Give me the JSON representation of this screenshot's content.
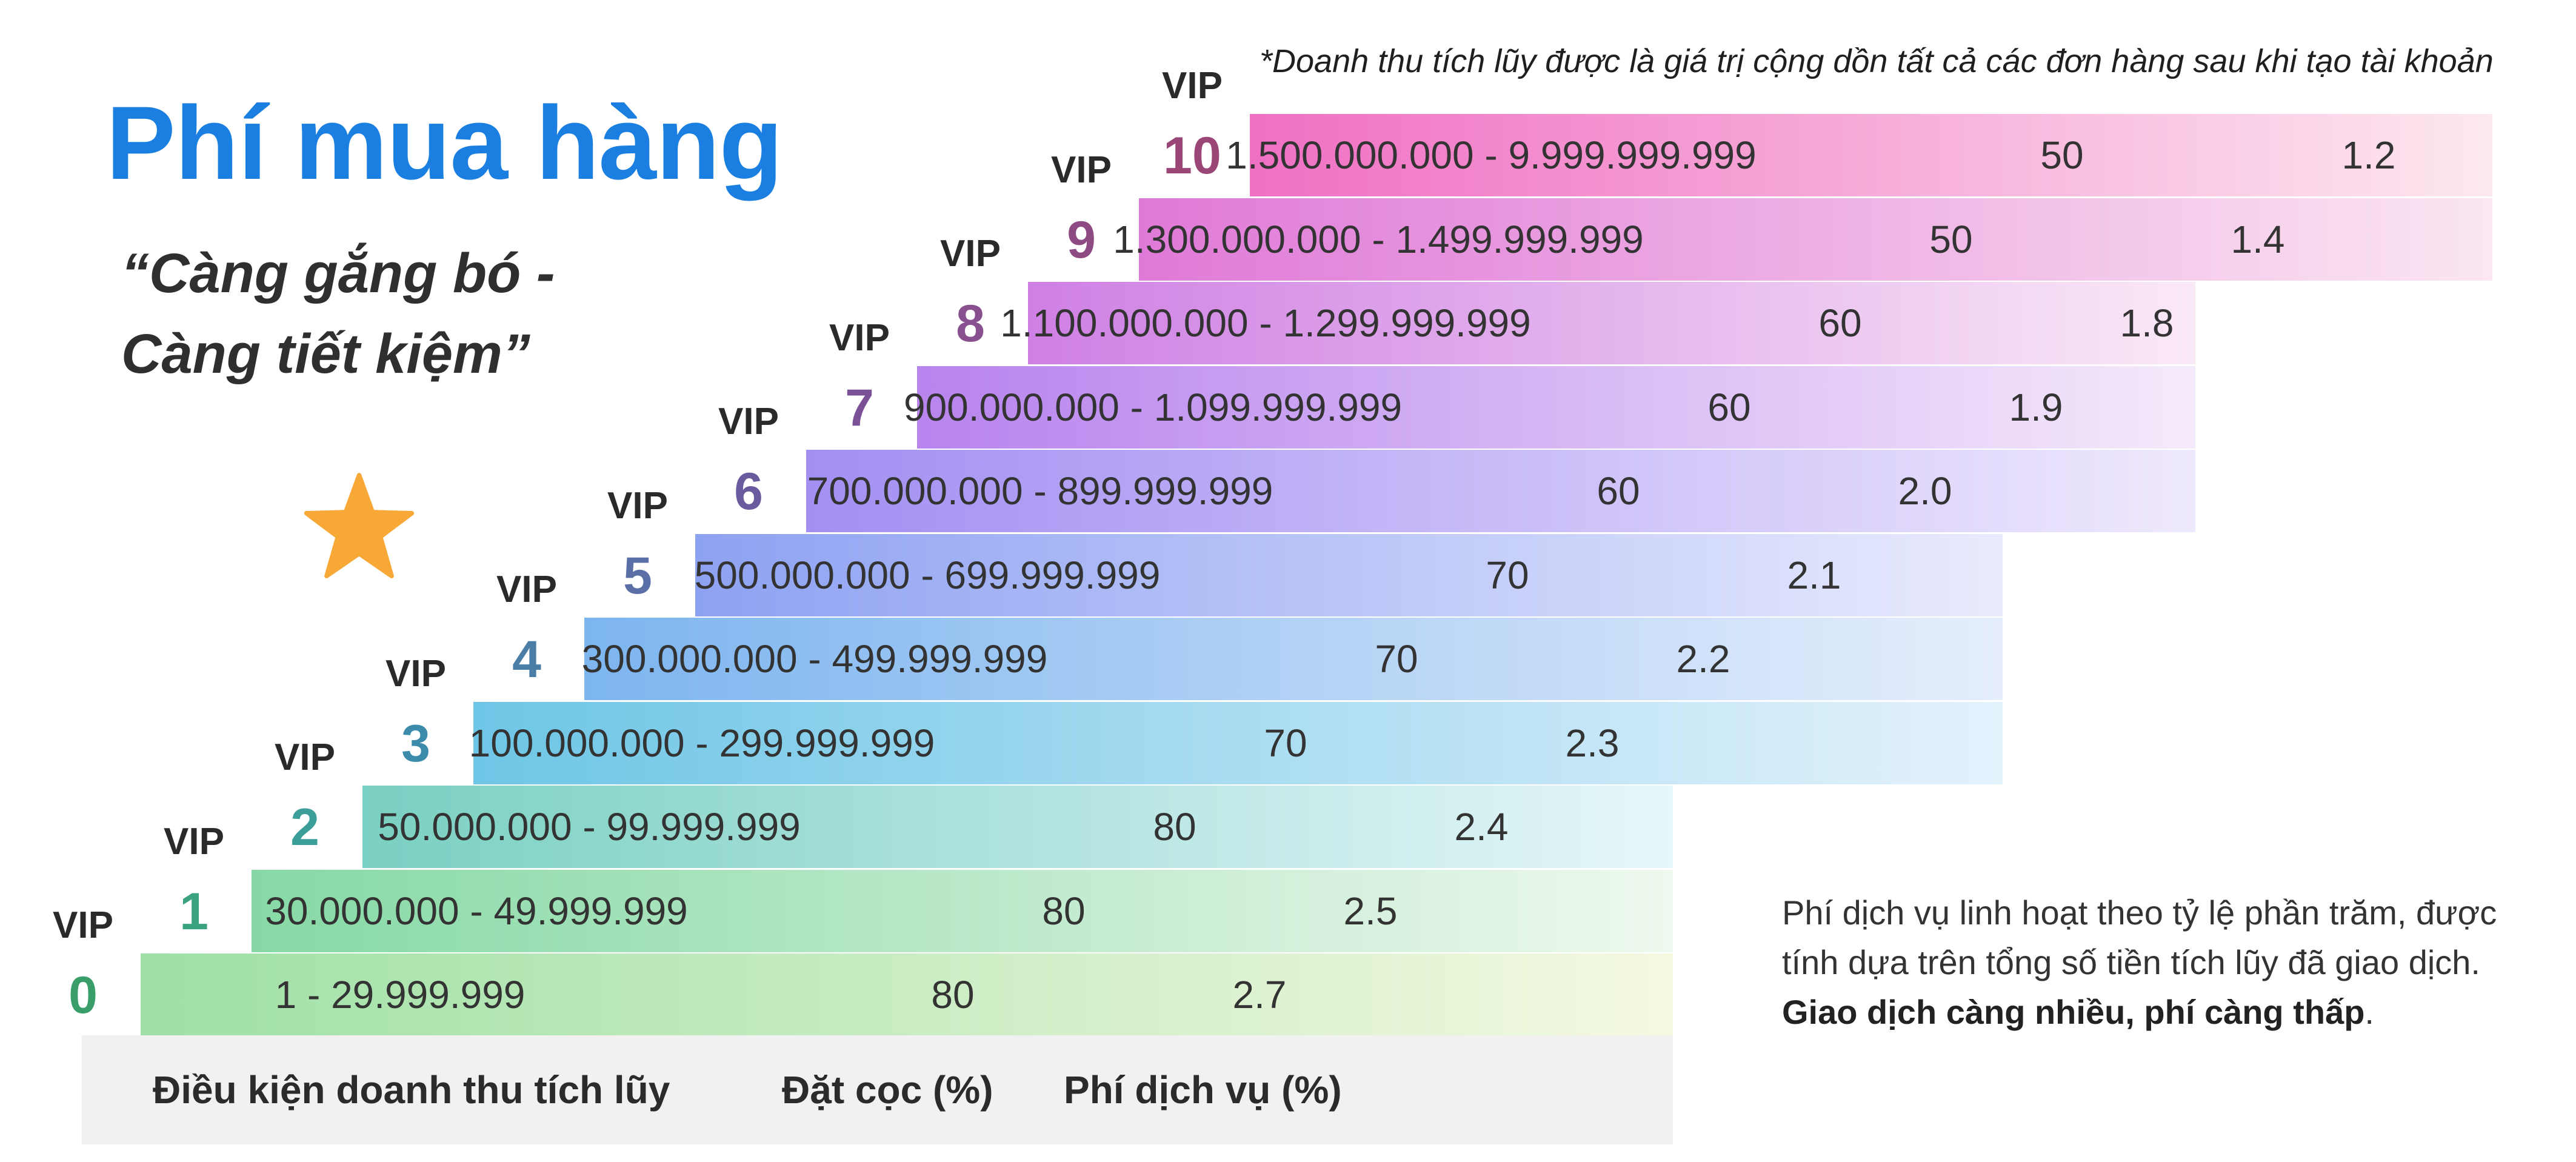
{
  "title": "Phí mua hàng",
  "slogan_line1": "“Càng gắng bó -",
  "slogan_line2": "Càng tiết kiệm”",
  "footnote": "*Doanh thu tích lũy được là giá trị cộng dồn tất cả các đơn hàng sau khi tạo tài khoản",
  "vip_word": "VIP",
  "headers": {
    "revenue": "Điều kiện doanh thu tích lũy",
    "deposit": "Đặt cọc (%)",
    "fee": "Phí dịch vụ (%)"
  },
  "note": {
    "line1": "Phí dịch vụ linh hoạt theo tỷ lệ phần trăm, được",
    "line2": "tính dựa trên tổng số tiền tích lũy đã giao dịch.",
    "bold": "Giao dịch càng nhiều, phí càng thấp",
    "end": "."
  },
  "star_icon": "star-icon",
  "tiers": [
    {
      "level": "0",
      "revenue": "1 - 29.999.999",
      "deposit": "80",
      "fee": "2.7",
      "color_start": "#9fe0a6",
      "color_end": "#f4f9e0",
      "num_color": "#3a9e6b"
    },
    {
      "level": "1",
      "revenue": "30.000.000 - 49.999.999",
      "deposit": "80",
      "fee": "2.5",
      "color_start": "#86d9a5",
      "color_end": "#eef8ee",
      "num_color": "#3aa27c"
    },
    {
      "level": "2",
      "revenue": "50.000.000 - 99.999.999",
      "deposit": "80",
      "fee": "2.4",
      "color_start": "#7ad0c2",
      "color_end": "#e6f6fa",
      "num_color": "#3b9e98"
    },
    {
      "level": "3",
      "revenue": "100.000.000 - 299.999.999",
      "deposit": "70",
      "fee": "2.3",
      "color_start": "#6ec6e6",
      "color_end": "#e4f2fc",
      "num_color": "#3d8bab"
    },
    {
      "level": "4",
      "revenue": "300.000.000 - 499.999.999",
      "deposit": "70",
      "fee": "2.2",
      "color_start": "#7db5ef",
      "color_end": "#e6eefc",
      "num_color": "#4a7ea6"
    },
    {
      "level": "5",
      "revenue": "500.000.000 - 699.999.999",
      "deposit": "70",
      "fee": "2.1",
      "color_start": "#8ea2f2",
      "color_end": "#e9ebfd",
      "num_color": "#5a6fa6"
    },
    {
      "level": "6",
      "revenue": "700.000.000 - 899.999.999",
      "deposit": "60",
      "fee": "2.0",
      "color_start": "#a38ff2",
      "color_end": "#efe9fd",
      "num_color": "#6a5a9e"
    },
    {
      "level": "7",
      "revenue": "900.000.000 - 1.099.999.999",
      "deposit": "60",
      "fee": "1.9",
      "color_start": "#b884ee",
      "color_end": "#f5eafb",
      "num_color": "#7a5096"
    },
    {
      "level": "8",
      "revenue": "1.100.000.000 - 1.299.999.999",
      "deposit": "60",
      "fee": "1.8",
      "color_start": "#cf80e4",
      "color_end": "#fae9f6",
      "num_color": "#88508e"
    },
    {
      "level": "9",
      "revenue": "1.300.000.000 - 1.499.999.999",
      "deposit": "50",
      "fee": "1.4",
      "color_start": "#e07ad8",
      "color_end": "#fbe6f1",
      "num_color": "#8e4a82"
    },
    {
      "level": "10",
      "revenue": "1.500.000.000 - 9.999.999.999",
      "deposit": "50",
      "fee": "1.2",
      "color_start": "#f070c4",
      "color_end": "#fde8ef",
      "num_color": "#9a4677"
    }
  ]
}
